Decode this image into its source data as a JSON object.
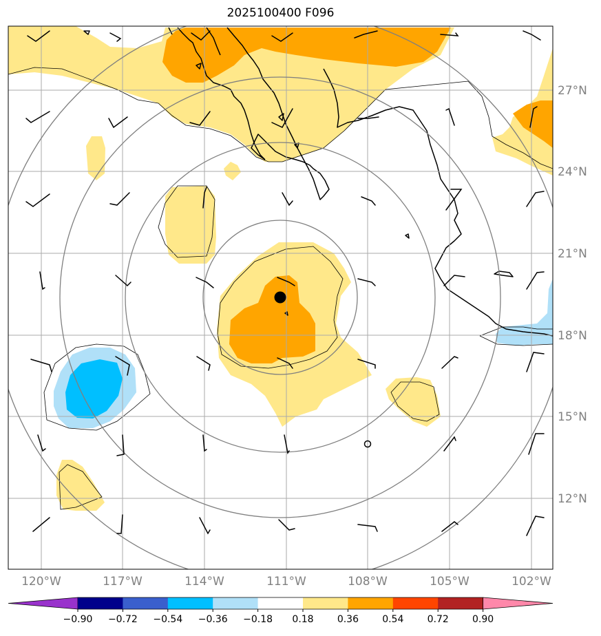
{
  "title": "2025100400 F096",
  "map": {
    "lat_labels": [
      "27°N",
      "24°N",
      "21°N",
      "18°N",
      "15°N",
      "12°N"
    ],
    "lon_labels": [
      "120°W",
      "117°W",
      "114°W",
      "111°W",
      "108°W",
      "105°W",
      "102°W"
    ],
    "lon_range": [
      -121.2,
      -101.2
    ],
    "lat_range": [
      9.2,
      29.2
    ]
  },
  "colorbar": {
    "labels": [
      "−0.90",
      "−0.72",
      "−0.54",
      "−0.36",
      "−0.18",
      "0.18",
      "0.36",
      "0.54",
      "0.72",
      "0.90"
    ],
    "colors": [
      "#9932cc",
      "#00008b",
      "#3a5fcd",
      "#00bfff",
      "#b0e0f8",
      "#ffffff",
      "#ffe88a",
      "#ffa500",
      "#ff4500",
      "#b22222",
      "#ff88aa"
    ]
  },
  "fill_colors": {
    "light_yellow": "#ffe88a",
    "orange": "#ffa500",
    "light_blue": "#b0e0f8",
    "deep_sky_blue": "#00bfff"
  },
  "storm_marker": "black-dot"
}
